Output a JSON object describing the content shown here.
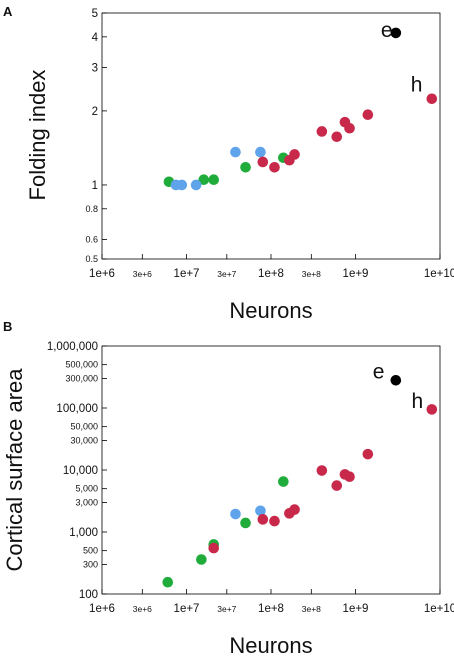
{
  "colors": {
    "red": "#c8294a",
    "green": "#1fac3b",
    "blue": "#5fa3ea",
    "black": "#000000"
  },
  "chart_data": [
    {
      "panel": "A",
      "type": "scatter",
      "xlabel": "Neurons",
      "ylabel": "Folding index",
      "xscale": "log",
      "yscale": "log",
      "xlim": [
        1000000,
        10000000000
      ],
      "ylim": [
        0.5,
        5
      ],
      "xticks": [
        {
          "v": 1000000,
          "label": "1e+6",
          "small": false
        },
        {
          "v": 3000000,
          "label": "3e+6",
          "small": true
        },
        {
          "v": 10000000,
          "label": "1e+7",
          "small": false
        },
        {
          "v": 30000000,
          "label": "3e+7",
          "small": true
        },
        {
          "v": 100000000,
          "label": "1e+8",
          "small": false
        },
        {
          "v": 300000000,
          "label": "3e+8",
          "small": true
        },
        {
          "v": 1000000000,
          "label": "1e+9",
          "small": false
        },
        {
          "v": 10000000000,
          "label": "1e+10",
          "small": false
        }
      ],
      "yticks": [
        {
          "v": 0.5,
          "label": "0.5",
          "small": true
        },
        {
          "v": 0.6,
          "label": "0.6",
          "small": true
        },
        {
          "v": 0.8,
          "label": "0.8",
          "small": true
        },
        {
          "v": 1,
          "label": "1",
          "small": false
        },
        {
          "v": 2,
          "label": "2",
          "small": false
        },
        {
          "v": 3,
          "label": "3",
          "small": false
        },
        {
          "v": 4,
          "label": "4",
          "small": false
        },
        {
          "v": 5,
          "label": "5",
          "small": false
        }
      ],
      "series": [
        {
          "color": "green",
          "points": [
            [
              6200000,
              1.03
            ],
            [
              16000000,
              1.05
            ],
            [
              21000000,
              1.05
            ],
            [
              50000000,
              1.18
            ],
            [
              140000000,
              1.29
            ]
          ]
        },
        {
          "color": "blue",
          "points": [
            [
              7500000,
              1.0
            ],
            [
              8800000,
              1.0
            ],
            [
              13000000,
              1.0
            ],
            [
              38000000,
              1.36
            ],
            [
              75000000,
              1.36
            ]
          ]
        },
        {
          "color": "red",
          "points": [
            [
              80000000,
              1.24
            ],
            [
              110000000,
              1.18
            ],
            [
              165000000,
              1.26
            ],
            [
              190000000,
              1.33
            ],
            [
              400000000,
              1.65
            ],
            [
              600000000,
              1.57
            ],
            [
              750000000,
              1.8
            ],
            [
              850000000,
              1.7
            ],
            [
              1400000000,
              1.93
            ],
            [
              8000000000,
              2.24
            ]
          ]
        },
        {
          "color": "black",
          "points": [
            [
              3000000000,
              4.15
            ]
          ]
        }
      ],
      "annotations": [
        {
          "text": "e",
          "x": 2000000000,
          "y": 4.0
        },
        {
          "text": "h",
          "x": 4500000000,
          "y": 2.4
        }
      ]
    },
    {
      "panel": "B",
      "type": "scatter",
      "xlabel": "Neurons",
      "ylabel": "Cortical surface area",
      "xscale": "log",
      "yscale": "log",
      "xlim": [
        1000000,
        10000000000
      ],
      "ylim": [
        100,
        1000000
      ],
      "xticks": [
        {
          "v": 1000000,
          "label": "1e+6",
          "small": false
        },
        {
          "v": 3000000,
          "label": "3e+6",
          "small": true
        },
        {
          "v": 10000000,
          "label": "1e+7",
          "small": false
        },
        {
          "v": 30000000,
          "label": "3e+7",
          "small": true
        },
        {
          "v": 100000000,
          "label": "1e+8",
          "small": false
        },
        {
          "v": 300000000,
          "label": "3e+8",
          "small": true
        },
        {
          "v": 1000000000,
          "label": "1e+9",
          "small": false
        },
        {
          "v": 10000000000,
          "label": "1e+10",
          "small": false
        }
      ],
      "yticks": [
        {
          "v": 100,
          "label": "100",
          "small": false
        },
        {
          "v": 300,
          "label": "300",
          "small": true
        },
        {
          "v": 500,
          "label": "500",
          "small": true
        },
        {
          "v": 1000,
          "label": "1,000",
          "small": false
        },
        {
          "v": 3000,
          "label": "3,000",
          "small": true
        },
        {
          "v": 5000,
          "label": "5,000",
          "small": true
        },
        {
          "v": 10000,
          "label": "10,000",
          "small": false
        },
        {
          "v": 30000,
          "label": "30,000",
          "small": true
        },
        {
          "v": 50000,
          "label": "50,000",
          "small": true
        },
        {
          "v": 100000,
          "label": "100,000",
          "small": false
        },
        {
          "v": 300000,
          "label": "300,000",
          "small": true
        },
        {
          "v": 500000,
          "label": "500,000",
          "small": true
        },
        {
          "v": 1000000,
          "label": "1,000,000",
          "small": false
        }
      ],
      "series": [
        {
          "color": "green",
          "points": [
            [
              6000000,
              155
            ],
            [
              15000000,
              360
            ],
            [
              21000000,
              630
            ],
            [
              50000000,
              1400
            ],
            [
              140000000,
              6500
            ]
          ]
        },
        {
          "color": "blue",
          "points": [
            [
              38000000,
              1950
            ],
            [
              75000000,
              2200
            ]
          ]
        },
        {
          "color": "red",
          "points": [
            [
              21000000,
              550
            ],
            [
              80000000,
              1600
            ],
            [
              110000000,
              1500
            ],
            [
              165000000,
              2000
            ],
            [
              190000000,
              2300
            ],
            [
              400000000,
              9800
            ],
            [
              600000000,
              5600
            ],
            [
              750000000,
              8500
            ],
            [
              850000000,
              7800
            ],
            [
              1400000000,
              18000
            ],
            [
              8000000000,
              95000
            ]
          ]
        },
        {
          "color": "black",
          "points": [
            [
              3000000000,
              280000
            ]
          ]
        }
      ],
      "annotations": [
        {
          "text": "e",
          "x": 1600000000,
          "y": 300000
        },
        {
          "text": "h",
          "x": 4600000000,
          "y": 100000
        }
      ]
    }
  ],
  "labels": {
    "panel_a": "A",
    "panel_b": "B",
    "a_xlabel": "Neurons",
    "a_ylabel": "Folding index",
    "b_xlabel": "Neurons",
    "b_ylabel": "Cortical surface area"
  }
}
